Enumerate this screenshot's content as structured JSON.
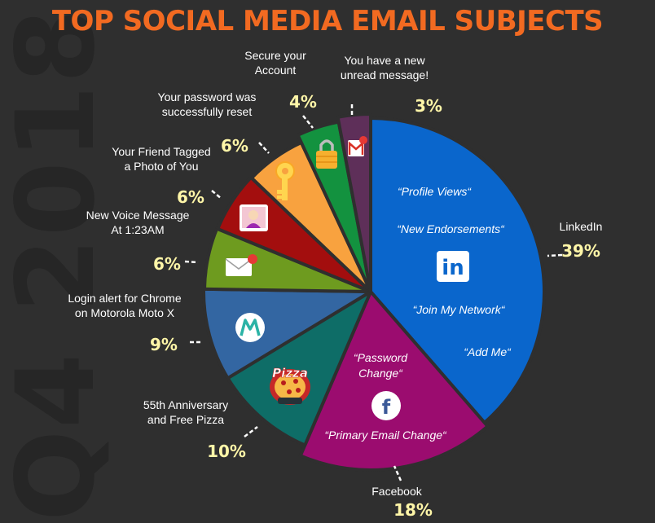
{
  "title": "TOP SOCIAL MEDIA EMAIL SUBJECTS",
  "watermark": "Q4 2018",
  "colors": {
    "title": "#f26a21",
    "background": "#2f2f2f",
    "percent": "#fff6a8"
  },
  "chart_data": {
    "type": "pie",
    "title": "TOP SOCIAL MEDIA EMAIL SUBJECTS",
    "unit": "%",
    "slices": [
      {
        "label": "LinkedIn",
        "value": 39,
        "pct_label": "39%",
        "color": "#0a66cc",
        "icon": "linkedin-icon",
        "icon_text": "in",
        "subjects": [
          "“Profile Views“",
          "“New Endorsements“",
          "“Join My Network“",
          "“Add Me“"
        ]
      },
      {
        "label": "Facebook",
        "value": 18,
        "pct_label": "18%",
        "color": "#9b0c6f",
        "icon": "facebook-icon",
        "icon_text": "f",
        "subjects": [
          "“Password",
          "Change“",
          "“Primary Email Change“"
        ]
      },
      {
        "label_lines": [
          "55th Anniversary",
          "and Free Pizza"
        ],
        "value": 10,
        "pct_label": "10%",
        "color": "#0e6d67",
        "icon": "pizza-icon",
        "icon_text": "Pizza"
      },
      {
        "label_lines": [
          "Login alert for Chrome",
          "on Motorola Moto X"
        ],
        "value": 9,
        "pct_label": "9%",
        "color": "#3366a2",
        "icon": "motorola-icon"
      },
      {
        "label_lines": [
          "New Voice Message",
          "At 1:23AM"
        ],
        "value": 6,
        "pct_label": "6%",
        "color": "#6e9b1f",
        "icon": "mail-notification-icon"
      },
      {
        "label_lines": [
          "Your Friend Tagged",
          "a Photo of You"
        ],
        "value": 6,
        "pct_label": "6%",
        "color": "#a30e0e",
        "icon": "photo-avatar-icon"
      },
      {
        "label_lines": [
          "Your password was",
          "successfully reset"
        ],
        "value": 6,
        "pct_label": "6%",
        "color": "#f8a23f",
        "icon": "key-icon"
      },
      {
        "label_lines": [
          "Secure your",
          "Account"
        ],
        "value": 4,
        "pct_label": "4%",
        "color": "#13923f",
        "icon": "padlock-icon"
      },
      {
        "label_lines": [
          "You have a new",
          "unread message!"
        ],
        "value": 3,
        "pct_label": "3%",
        "color": "#5e2f59",
        "icon": "gmail-icon"
      }
    ]
  }
}
